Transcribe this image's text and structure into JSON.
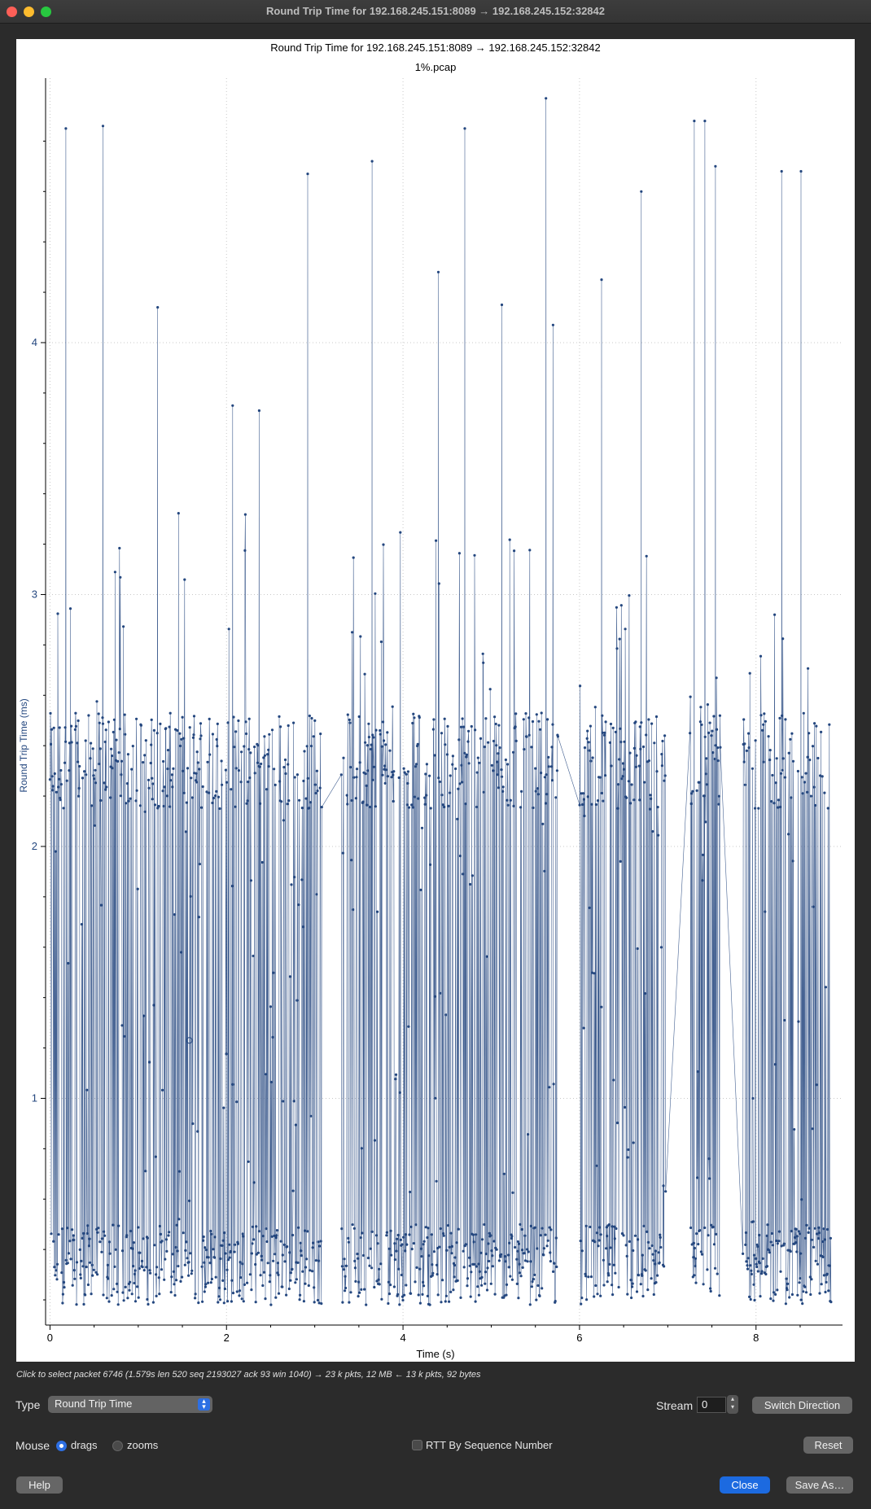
{
  "window": {
    "title": "Round Trip Time for 192.168.245.151:8089 → 192.168.245.152:32842"
  },
  "chart_data": {
    "type": "line",
    "title": "Round Trip Time for 192.168.245.151:8089 → 192.168.245.152:32842",
    "subtitle": "1%.pcap",
    "xlabel": "Time (s)",
    "ylabel": "Round Trip Time (ms)",
    "xlim": [
      -0.05,
      8.98
    ],
    "ylim": [
      0.1,
      5.05
    ],
    "x_ticks": [
      0,
      2,
      4,
      6,
      8
    ],
    "y_ticks": [
      1,
      2,
      3,
      4
    ],
    "grid": true,
    "color": "#24477f",
    "series_desc": "single series, ~6746 packets; mostly alternating between ~0.2-0.4 ms and ~2.2-2.5 ms",
    "peaks": [
      {
        "x": 0.18,
        "y": 4.85
      },
      {
        "x": 0.6,
        "y": 4.86
      },
      {
        "x": 1.22,
        "y": 4.14
      },
      {
        "x": 2.07,
        "y": 3.75
      },
      {
        "x": 2.37,
        "y": 3.73
      },
      {
        "x": 2.92,
        "y": 4.67
      },
      {
        "x": 3.65,
        "y": 4.72
      },
      {
        "x": 4.4,
        "y": 4.28
      },
      {
        "x": 4.7,
        "y": 4.85
      },
      {
        "x": 5.12,
        "y": 4.15
      },
      {
        "x": 5.62,
        "y": 4.97
      },
      {
        "x": 5.7,
        "y": 4.07
      },
      {
        "x": 6.25,
        "y": 4.25
      },
      {
        "x": 6.7,
        "y": 4.6
      },
      {
        "x": 7.3,
        "y": 4.88
      },
      {
        "x": 7.42,
        "y": 4.88
      },
      {
        "x": 7.54,
        "y": 4.7
      },
      {
        "x": 8.29,
        "y": 4.68
      },
      {
        "x": 8.51,
        "y": 4.68
      }
    ],
    "gaps": [
      {
        "x_start": 3.08,
        "x_end": 3.3
      },
      {
        "x_start": 5.76,
        "x_end": 6.0
      },
      {
        "x_start": 6.98,
        "x_end": 7.25
      },
      {
        "x_start": 7.6,
        "x_end": 7.85
      }
    ]
  },
  "status": {
    "info": "Click to select packet 6746 (1.579s len 520 seq 2193027 ack 93 win 1040) → 23 k pkts, 12 MB ← 13 k pkts, 92 bytes"
  },
  "controls": {
    "type_label": "Type",
    "type_value": "Round Trip Time",
    "stream_label": "Stream",
    "stream_value": "0",
    "switch_direction": "Switch Direction",
    "mouse_label": "Mouse",
    "drags_label": "drags",
    "zooms_label": "zooms",
    "mouse_mode": "drags",
    "rtt_seq_label": "RTT By Sequence Number",
    "rtt_seq_checked": false,
    "reset": "Reset",
    "help": "Help",
    "close": "Close",
    "save_as": "Save As…"
  }
}
